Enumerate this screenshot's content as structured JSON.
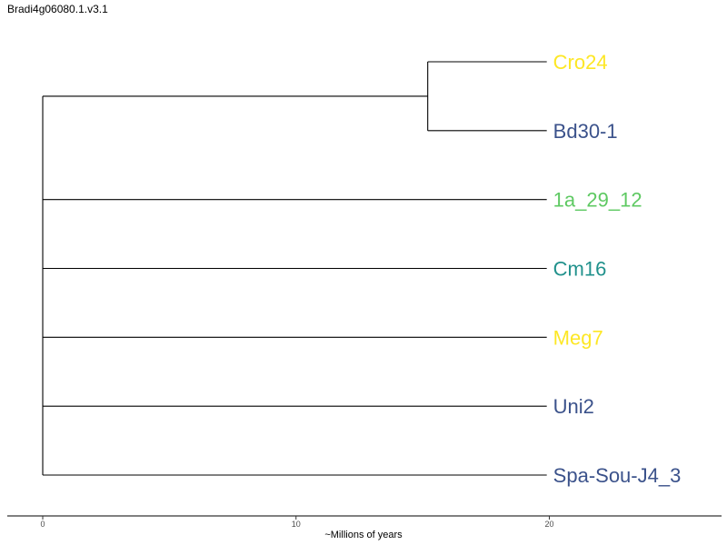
{
  "title": "Bradi4g06080.1.v3.1",
  "x_axis": {
    "label": "~Millions of years",
    "ticks": [
      0,
      10,
      20
    ],
    "range": [
      -1.4,
      26.8
    ]
  },
  "tree": {
    "tips": [
      {
        "name": "Cro24",
        "color": "#fde725",
        "age": 19.9
      },
      {
        "name": "Bd30-1",
        "color": "#3b528b",
        "age": 19.9
      },
      {
        "name": "1a_29_12",
        "color": "#5ec962",
        "age": 19.9
      },
      {
        "name": "Cm16",
        "color": "#21918c",
        "age": 19.9
      },
      {
        "name": "Meg7",
        "color": "#fde725",
        "age": 19.9
      },
      {
        "name": "Uni2",
        "color": "#3b528b",
        "age": 19.9
      },
      {
        "name": "Spa-Sou-J4_3",
        "color": "#3b528b",
        "age": 19.9
      }
    ],
    "root_x": 0,
    "clade_node_x": 15.2,
    "clade_tips": [
      "Cro24",
      "Bd30-1"
    ]
  }
}
